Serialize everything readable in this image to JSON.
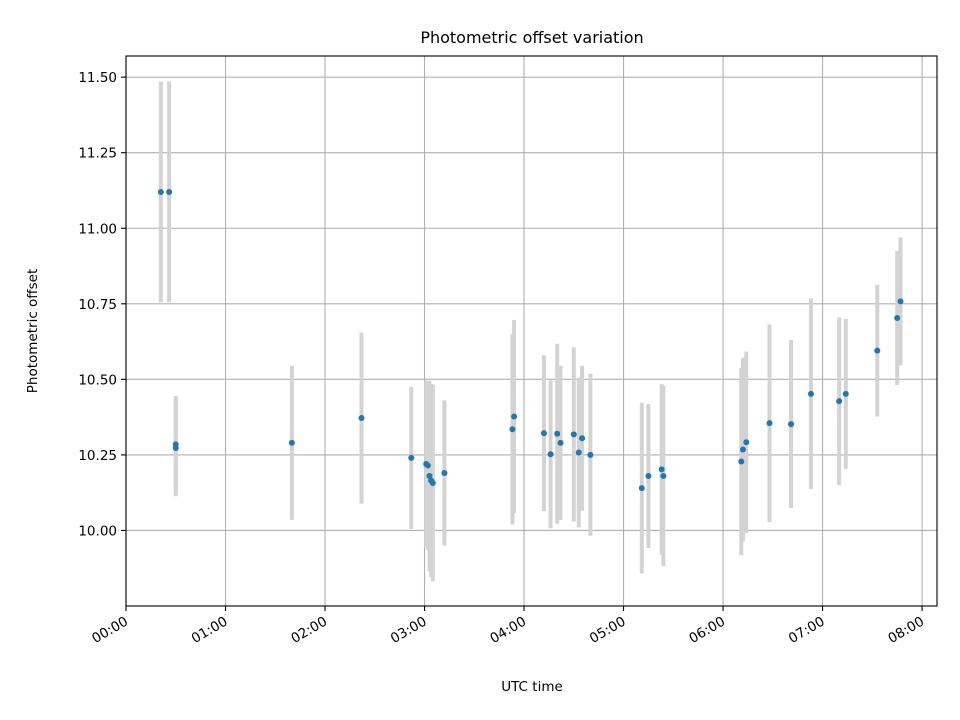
{
  "chart_data": {
    "type": "scatter",
    "title": "Photometric offset variation",
    "xlabel": "UTC time",
    "ylabel": "Photometric offset",
    "x_tick_labels": [
      "00:00",
      "01:00",
      "02:00",
      "03:00",
      "04:00",
      "05:00",
      "06:00",
      "07:00",
      "08:00"
    ],
    "y_tick_values": [
      10.0,
      10.25,
      10.5,
      10.75,
      11.0,
      11.25,
      11.5
    ],
    "xlim": [
      "00:00",
      "08:09"
    ],
    "ylim": [
      9.75,
      11.57
    ],
    "grid": true,
    "colors": {
      "point": "#1f77b4",
      "errorbar": "#d3d3d3",
      "grid": "#b0b0b0"
    },
    "points": [
      {
        "x": "00:21",
        "y": 11.12,
        "err": 0.365
      },
      {
        "x": "00:26",
        "y": 11.12,
        "err": 0.365
      },
      {
        "x": "00:30",
        "y": 10.285,
        "err": 0.16
      },
      {
        "x": "00:30",
        "y": 10.273,
        "err": 0.16
      },
      {
        "x": "01:40",
        "y": 10.29,
        "err": 0.255
      },
      {
        "x": "02:22",
        "y": 10.372,
        "err": 0.283
      },
      {
        "x": "02:52",
        "y": 10.24,
        "err": 0.235
      },
      {
        "x": "03:01",
        "y": 10.22,
        "err": 0.275
      },
      {
        "x": "03:02",
        "y": 10.215,
        "err": 0.28
      },
      {
        "x": "03:03",
        "y": 10.18,
        "err": 0.315
      },
      {
        "x": "03:04",
        "y": 10.165,
        "err": 0.32
      },
      {
        "x": "03:05",
        "y": 10.157,
        "err": 0.325
      },
      {
        "x": "03:12",
        "y": 10.19,
        "err": 0.24
      },
      {
        "x": "03:53",
        "y": 10.335,
        "err": 0.315
      },
      {
        "x": "03:54",
        "y": 10.377,
        "err": 0.32
      },
      {
        "x": "04:12",
        "y": 10.322,
        "err": 0.258
      },
      {
        "x": "04:16",
        "y": 10.252,
        "err": 0.245
      },
      {
        "x": "04:20",
        "y": 10.32,
        "err": 0.298
      },
      {
        "x": "04:22",
        "y": 10.29,
        "err": 0.255
      },
      {
        "x": "04:30",
        "y": 10.318,
        "err": 0.288
      },
      {
        "x": "04:33",
        "y": 10.258,
        "err": 0.248
      },
      {
        "x": "04:35",
        "y": 10.305,
        "err": 0.24
      },
      {
        "x": "04:40",
        "y": 10.25,
        "err": 0.268
      },
      {
        "x": "05:11",
        "y": 10.14,
        "err": 0.282
      },
      {
        "x": "05:15",
        "y": 10.18,
        "err": 0.238
      },
      {
        "x": "05:23",
        "y": 10.202,
        "err": 0.282
      },
      {
        "x": "05:24",
        "y": 10.18,
        "err": 0.298
      },
      {
        "x": "06:11",
        "y": 10.228,
        "err": 0.31
      },
      {
        "x": "06:12",
        "y": 10.268,
        "err": 0.303
      },
      {
        "x": "06:14",
        "y": 10.292,
        "err": 0.3
      },
      {
        "x": "06:28",
        "y": 10.355,
        "err": 0.327
      },
      {
        "x": "06:41",
        "y": 10.352,
        "err": 0.278
      },
      {
        "x": "06:53",
        "y": 10.452,
        "err": 0.315
      },
      {
        "x": "07:10",
        "y": 10.428,
        "err": 0.277
      },
      {
        "x": "07:14",
        "y": 10.452,
        "err": 0.248
      },
      {
        "x": "07:33",
        "y": 10.595,
        "err": 0.218
      },
      {
        "x": "07:45",
        "y": 10.703,
        "err": 0.222
      },
      {
        "x": "07:47",
        "y": 10.758,
        "err": 0.212
      }
    ]
  }
}
